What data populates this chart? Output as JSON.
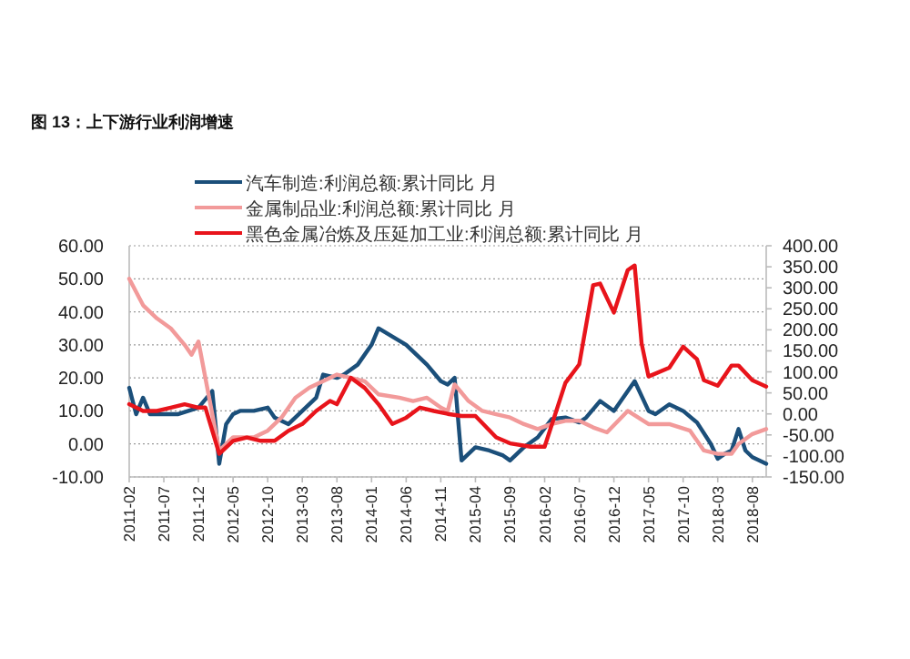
{
  "chart_data": {
    "type": "line",
    "title": "图 13：上下游行业利润增速",
    "series": [
      {
        "name": "汽车制造:利润总额:累计同比 月",
        "color": "#1b4f7a",
        "x": [
          "2011-02",
          "2011-03",
          "2011-04",
          "2011-05",
          "2011-07",
          "2011-09",
          "2011-12",
          "2012-02",
          "2012-03",
          "2012-04",
          "2012-05",
          "2012-06",
          "2012-08",
          "2012-10",
          "2012-11",
          "2013-01",
          "2013-03",
          "2013-05",
          "2013-06",
          "2013-08",
          "2013-09",
          "2013-11",
          "2014-01",
          "2014-02",
          "2014-06",
          "2014-09",
          "2014-11",
          "2014-12",
          "2015-01",
          "2015-02",
          "2015-04",
          "2015-06",
          "2015-08",
          "2015-09",
          "2015-11",
          "2016-01",
          "2016-03",
          "2016-05",
          "2016-07",
          "2016-08",
          "2016-10",
          "2016-12",
          "2017-03",
          "2017-05",
          "2017-06",
          "2017-08",
          "2017-10",
          "2017-12",
          "2018-02",
          "2018-03",
          "2018-04",
          "2018-05",
          "2018-06",
          "2018-07",
          "2018-08",
          "2018-10"
        ],
        "values": [
          17,
          9,
          14,
          9,
          9,
          9,
          11,
          16,
          -6,
          6,
          9,
          10,
          10,
          11,
          8,
          6,
          10,
          14,
          21,
          20,
          21,
          24,
          30,
          35,
          30,
          24,
          19,
          18,
          20,
          -5,
          -1,
          -2,
          -3.5,
          -5,
          -1,
          2,
          7.5,
          8,
          6.5,
          8,
          13,
          10,
          19,
          10,
          9,
          12,
          10,
          6.5,
          0,
          -4.5,
          -3,
          -2,
          4.5,
          -2,
          -4,
          -6
        ]
      },
      {
        "name": "金属制品业:利润总额:累计同比 月",
        "color": "#f29a9a",
        "x": [
          "2011-02",
          "2011-04",
          "2011-06",
          "2011-08",
          "2011-10",
          "2011-11",
          "2011-12",
          "2012-03",
          "2012-05",
          "2012-08",
          "2012-10",
          "2012-12",
          "2013-02",
          "2013-04",
          "2013-06",
          "2013-08",
          "2013-10",
          "2013-12",
          "2014-02",
          "2014-05",
          "2014-07",
          "2014-09",
          "2014-11",
          "2014-12",
          "2015-01",
          "2015-03",
          "2015-05",
          "2015-07",
          "2015-09",
          "2015-11",
          "2016-01",
          "2016-03",
          "2016-05",
          "2016-07",
          "2016-09",
          "2016-11",
          "2017-02",
          "2017-05",
          "2017-08",
          "2017-11",
          "2018-01",
          "2018-03",
          "2018-05",
          "2018-06",
          "2018-08",
          "2018-10"
        ],
        "values": [
          50,
          42,
          38,
          35,
          30,
          27,
          31,
          -2,
          2,
          2,
          4,
          8,
          14,
          17,
          19,
          21,
          20,
          19,
          15,
          14,
          13,
          14,
          11,
          10,
          18,
          13,
          10,
          9,
          8,
          6,
          4.5,
          6,
          7,
          7,
          5,
          3.5,
          10,
          6,
          6,
          4,
          -2,
          -3,
          -3,
          0,
          3,
          4.5
        ]
      },
      {
        "name": "黑色金属冶炼及压延加工业:利润总额:累计同比 月",
        "color": "#e8141b",
        "axis": "y2",
        "x": [
          "2011-02",
          "2011-04",
          "2011-06",
          "2011-08",
          "2011-10",
          "2011-12",
          "2012-01",
          "2012-03",
          "2012-05",
          "2012-07",
          "2012-09",
          "2012-11",
          "2013-01",
          "2013-03",
          "2013-05",
          "2013-07",
          "2013-08",
          "2013-10",
          "2013-12",
          "2014-02",
          "2014-04",
          "2014-06",
          "2014-08",
          "2014-10",
          "2014-12",
          "2015-02",
          "2015-04",
          "2015-07",
          "2015-09",
          "2015-12",
          "2016-02",
          "2016-05",
          "2016-07",
          "2016-09",
          "2016-10",
          "2016-12",
          "2017-02",
          "2017-03",
          "2017-04",
          "2017-05",
          "2017-08",
          "2017-10",
          "2017-12",
          "2018-01",
          "2018-03",
          "2018-05",
          "2018-06",
          "2018-08",
          "2018-10"
        ],
        "values": [
          23,
          7,
          7,
          15,
          23,
          15,
          15,
          -95,
          -64,
          -56,
          -64,
          -64,
          -40,
          -24,
          7,
          31,
          23,
          86,
          62,
          23,
          -24,
          -9,
          15,
          7,
          0,
          -5,
          -5,
          -56,
          -70,
          -78,
          -78,
          74,
          118,
          306,
          310,
          241,
          342,
          353,
          168,
          89,
          110,
          160,
          130,
          80,
          67,
          115,
          115,
          80,
          65
        ]
      }
    ],
    "xlim": [
      "2011-02",
      "2018-10"
    ],
    "xticks": [
      "2011-02",
      "2011-07",
      "2011-12",
      "2012-05",
      "2012-10",
      "2013-03",
      "2013-08",
      "2014-01",
      "2014-06",
      "2014-11",
      "2015-04",
      "2015-09",
      "2016-02",
      "2016-07",
      "2016-12",
      "2017-05",
      "2017-10",
      "2018-03",
      "2018-08"
    ],
    "ylim": [
      -10,
      60
    ],
    "yticks": [
      {
        "value": -10,
        "label": "-10.00"
      },
      {
        "value": 0,
        "label": "0.00"
      },
      {
        "value": 10,
        "label": "10.00"
      },
      {
        "value": 20,
        "label": "20.00"
      },
      {
        "value": 30,
        "label": "30.00"
      },
      {
        "value": 40,
        "label": "40.00"
      },
      {
        "value": 50,
        "label": "50.00"
      },
      {
        "value": 60,
        "label": "60.00"
      }
    ],
    "y2lim": [
      -150,
      400
    ],
    "y2ticks": [
      {
        "value": -150,
        "label": "-150.00"
      },
      {
        "value": -100,
        "label": "-100.00"
      },
      {
        "value": -50,
        "label": "-50.00"
      },
      {
        "value": 0,
        "label": "0.00"
      },
      {
        "value": 50,
        "label": "50.00"
      },
      {
        "value": 100,
        "label": "100.00"
      },
      {
        "value": 150,
        "label": "150.00"
      },
      {
        "value": 200,
        "label": "200.00"
      },
      {
        "value": 250,
        "label": "250.00"
      },
      {
        "value": 300,
        "label": "300.00"
      },
      {
        "value": 350,
        "label": "350.00"
      },
      {
        "value": 400,
        "label": "400.00"
      }
    ],
    "grid": "y",
    "legend": "top",
    "marker": "none",
    "line_style": "solid"
  }
}
